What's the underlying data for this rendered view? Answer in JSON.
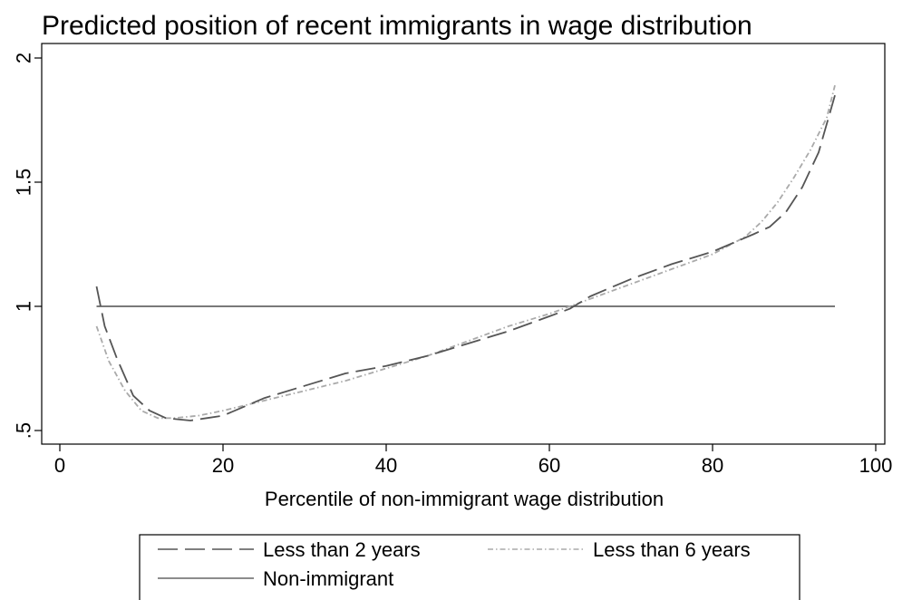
{
  "chart_data": {
    "type": "line",
    "title": "Predicted position of recent immigrants in wage distribution",
    "xlabel": "Percentile of non-immigrant wage distribution",
    "ylabel": "",
    "xlim": [
      0,
      100
    ],
    "ylim": [
      0.5,
      2
    ],
    "x_ticks": [
      {
        "value": 0,
        "label": "0"
      },
      {
        "value": 20,
        "label": "20"
      },
      {
        "value": 40,
        "label": "40"
      },
      {
        "value": 60,
        "label": "60"
      },
      {
        "value": 80,
        "label": "80"
      },
      {
        "value": 100,
        "label": "100"
      }
    ],
    "y_ticks": [
      {
        "value": 0.5,
        "label": ".5"
      },
      {
        "value": 1,
        "label": "1"
      },
      {
        "value": 1.5,
        "label": "1.5"
      },
      {
        "value": 2,
        "label": "2"
      }
    ],
    "grid": false,
    "legend_position": "bottom",
    "series": [
      {
        "name": "Less than 2 years",
        "style": "long-dash",
        "color": "#555555",
        "points": [
          [
            4.5,
            1.08
          ],
          [
            5.5,
            0.92
          ],
          [
            7,
            0.79
          ],
          [
            9,
            0.64
          ],
          [
            11,
            0.58
          ],
          [
            13,
            0.55
          ],
          [
            16,
            0.54
          ],
          [
            18,
            0.55
          ],
          [
            20,
            0.56
          ],
          [
            25,
            0.63
          ],
          [
            30,
            0.68
          ],
          [
            35,
            0.73
          ],
          [
            40,
            0.76
          ],
          [
            45,
            0.8
          ],
          [
            50,
            0.85
          ],
          [
            55,
            0.9
          ],
          [
            60,
            0.96
          ],
          [
            62.5,
            0.99
          ],
          [
            65,
            1.04
          ],
          [
            70,
            1.11
          ],
          [
            75,
            1.17
          ],
          [
            80,
            1.22
          ],
          [
            85,
            1.29
          ],
          [
            87,
            1.32
          ],
          [
            89,
            1.38
          ],
          [
            91,
            1.48
          ],
          [
            93,
            1.62
          ],
          [
            95,
            1.85
          ]
        ]
      },
      {
        "name": "Less than 6 years",
        "style": "dash-dot",
        "color": "#aaaaaa",
        "points": [
          [
            4.5,
            0.92
          ],
          [
            6,
            0.78
          ],
          [
            8,
            0.66
          ],
          [
            10,
            0.58
          ],
          [
            12,
            0.55
          ],
          [
            14,
            0.55
          ],
          [
            17,
            0.56
          ],
          [
            20,
            0.58
          ],
          [
            25,
            0.62
          ],
          [
            30,
            0.66
          ],
          [
            35,
            0.7
          ],
          [
            40,
            0.75
          ],
          [
            45,
            0.8
          ],
          [
            50,
            0.86
          ],
          [
            55,
            0.92
          ],
          [
            60,
            0.97
          ],
          [
            65,
            1.03
          ],
          [
            70,
            1.09
          ],
          [
            75,
            1.15
          ],
          [
            80,
            1.21
          ],
          [
            84,
            1.28
          ],
          [
            86,
            1.34
          ],
          [
            88,
            1.42
          ],
          [
            90,
            1.52
          ],
          [
            92,
            1.63
          ],
          [
            94,
            1.76
          ],
          [
            95,
            1.89
          ]
        ]
      },
      {
        "name": "Non-immigrant",
        "style": "solid",
        "color": "#666666",
        "points": [
          [
            4.5,
            1
          ],
          [
            95,
            1
          ]
        ]
      }
    ]
  }
}
